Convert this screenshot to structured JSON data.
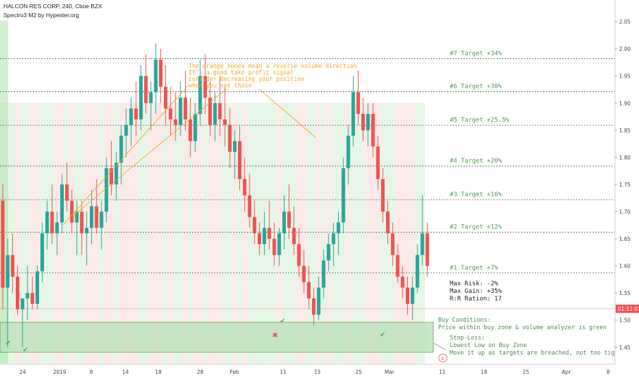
{
  "header": {
    "symbol_line": "HALCON RES CORP, 240, Cboe BZX",
    "indicator_line": "Spectro3 M2 by Hypester.org"
  },
  "colors": {
    "up": "#26a69a",
    "down": "#ef5350",
    "buy_zone": "#b9e0b9",
    "target_text": "#4e9a4e",
    "annotation": "#f5a623",
    "price_line": "#ef5350"
  },
  "annotations": {
    "orange_note": [
      "The orange zones mean a reverse volume direction",
      "It's a good take-profit signal",
      "consider decreasing your position",
      "when you see those"
    ],
    "risk_box": [
      "Max Risk: -2%",
      "Max Gain: +35%",
      "R:R Ration: 17"
    ],
    "buy_conditions": [
      "Buy Conditions:",
      "Price within buy zone & volume analyzer is green"
    ],
    "stop_loss": [
      "Stop-Loss:",
      "Lowest Low on Buy Zone",
      "Move it up as targets are breached, not too tight."
    ],
    "event_marker": "E"
  },
  "chart_data": {
    "type": "candlestick",
    "title": "HALCON RES CORP, 240, Cboe BZX",
    "y_axis": {
      "ylim": [
        1.42,
        2.09
      ],
      "tick_labels": [
        "2.05",
        "2.00",
        "1.95",
        "1.90",
        "1.85",
        "1.80",
        "1.75",
        "1.70",
        "1.65",
        "1.60",
        "1.55",
        "1.50",
        "1.45"
      ],
      "ticks": [
        2.05,
        2.0,
        1.95,
        1.9,
        1.85,
        1.8,
        1.75,
        1.7,
        1.65,
        1.6,
        1.55,
        1.5,
        1.45
      ]
    },
    "x_axis": {
      "tick_labels": [
        "24",
        "2019",
        "8",
        "14",
        "18",
        "28",
        "Feb",
        "11",
        "15",
        "25",
        "Mar",
        "11",
        "18",
        "25",
        "Apr",
        "8"
      ],
      "tick_positions": [
        3,
        6,
        11,
        14.5,
        18,
        23,
        27,
        33,
        36,
        41,
        45,
        52,
        57,
        62,
        67,
        72
      ]
    },
    "current_price": {
      "label": "01:51:07",
      "value": 1.521
    },
    "targets": [
      {
        "label": "#1 Target +7%",
        "value": 1.587
      },
      {
        "label": "#2 Target +12%",
        "value": 1.662
      },
      {
        "label": "#3 Target +16%",
        "value": 1.722
      },
      {
        "label": "#4 Target +20%",
        "value": 1.784
      },
      {
        "label": "#5 Target +25.5%",
        "value": 1.859
      },
      {
        "label": "#6 Target +30%",
        "value": 1.921
      },
      {
        "label": "#7 Target +34%",
        "value": 1.982
      }
    ],
    "buy_zone": {
      "from": 1.441,
      "to": 1.496
    },
    "candles": [
      [
        1.72,
        1.75,
        1.52,
        1.56
      ],
      [
        1.56,
        1.65,
        1.45,
        1.62
      ],
      [
        1.62,
        1.66,
        1.55,
        1.58
      ],
      [
        1.58,
        1.6,
        1.51,
        1.52
      ],
      [
        1.52,
        1.54,
        1.45,
        1.54
      ],
      [
        1.54,
        1.6,
        1.5,
        1.55
      ],
      [
        1.55,
        1.58,
        1.52,
        1.53
      ],
      [
        1.53,
        1.6,
        1.52,
        1.59
      ],
      [
        1.59,
        1.68,
        1.57,
        1.66
      ],
      [
        1.66,
        1.72,
        1.63,
        1.7
      ],
      [
        1.7,
        1.75,
        1.64,
        1.66
      ],
      [
        1.66,
        1.7,
        1.62,
        1.68
      ],
      [
        1.68,
        1.77,
        1.66,
        1.75
      ],
      [
        1.75,
        1.79,
        1.7,
        1.72
      ],
      [
        1.72,
        1.74,
        1.66,
        1.68
      ],
      [
        1.68,
        1.72,
        1.62,
        1.7
      ],
      [
        1.7,
        1.72,
        1.62,
        1.66
      ],
      [
        1.66,
        1.7,
        1.6,
        1.67
      ],
      [
        1.67,
        1.74,
        1.64,
        1.71
      ],
      [
        1.71,
        1.76,
        1.66,
        1.67
      ],
      [
        1.67,
        1.72,
        1.63,
        1.7
      ],
      [
        1.7,
        1.8,
        1.68,
        1.78
      ],
      [
        1.78,
        1.83,
        1.73,
        1.75
      ],
      [
        1.75,
        1.81,
        1.72,
        1.79
      ],
      [
        1.79,
        1.86,
        1.75,
        1.84
      ],
      [
        1.84,
        1.89,
        1.8,
        1.86
      ],
      [
        1.86,
        1.91,
        1.82,
        1.89
      ],
      [
        1.89,
        1.94,
        1.84,
        1.87
      ],
      [
        1.87,
        1.97,
        1.85,
        1.95
      ],
      [
        1.95,
        1.99,
        1.88,
        1.9
      ],
      [
        1.9,
        1.94,
        1.85,
        1.92
      ],
      [
        1.92,
        2.01,
        1.88,
        1.98
      ],
      [
        1.98,
        2.0,
        1.9,
        1.93
      ],
      [
        1.93,
        1.97,
        1.86,
        1.89
      ],
      [
        1.89,
        1.93,
        1.84,
        1.87
      ],
      [
        1.87,
        1.92,
        1.83,
        1.86
      ],
      [
        1.86,
        1.94,
        1.84,
        1.91
      ],
      [
        1.91,
        1.96,
        1.85,
        1.87
      ],
      [
        1.87,
        1.91,
        1.8,
        1.83
      ],
      [
        1.83,
        1.9,
        1.81,
        1.88
      ],
      [
        1.88,
        1.98,
        1.86,
        1.95
      ],
      [
        1.95,
        1.99,
        1.88,
        1.91
      ],
      [
        1.91,
        1.94,
        1.84,
        1.86
      ],
      [
        1.86,
        1.92,
        1.83,
        1.9
      ],
      [
        1.9,
        1.95,
        1.84,
        1.87
      ],
      [
        1.87,
        1.93,
        1.82,
        1.86
      ],
      [
        1.86,
        1.89,
        1.78,
        1.81
      ],
      [
        1.81,
        1.85,
        1.76,
        1.83
      ],
      [
        1.83,
        1.86,
        1.74,
        1.76
      ]
    ]
  }
}
